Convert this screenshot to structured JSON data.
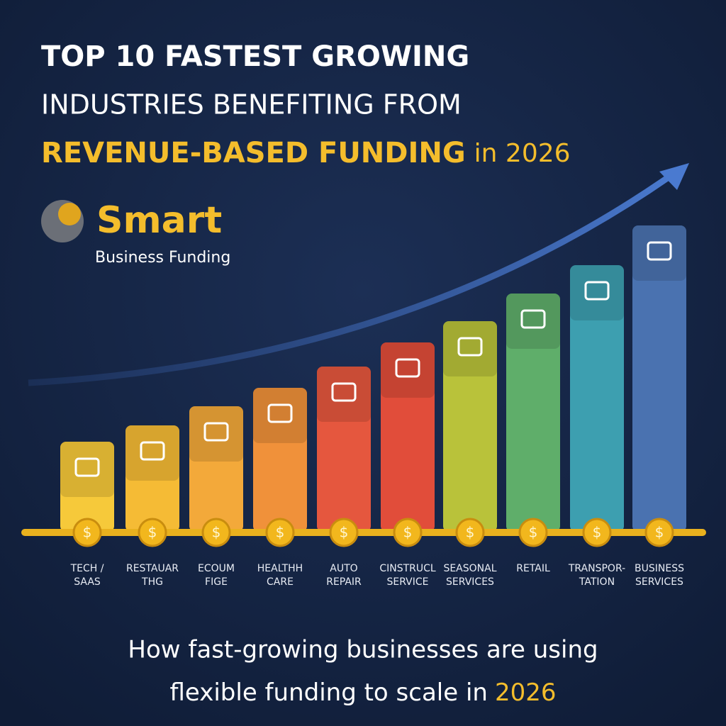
{
  "header": {
    "line1": "TOP 10 FASTEST GROWING",
    "line2": "INDUSTRIES BENEFITING FROM",
    "line3_highlight": "REVENUE-BASED FUNDING",
    "line3_rest": "in 2026"
  },
  "logo": {
    "name": "Smart",
    "tagline": "Business Funding"
  },
  "coin_symbol": "$",
  "industries": [
    {
      "lines": [
        "TECH /",
        "SAAS"
      ]
    },
    {
      "lines": [
        "RESTAUAR",
        "THG"
      ]
    },
    {
      "lines": [
        "ECOUM",
        "FIGE"
      ]
    },
    {
      "lines": [
        "HEALTHH",
        "CARE"
      ]
    },
    {
      "lines": [
        "AUTO",
        "REPAIR"
      ]
    },
    {
      "lines": [
        "CINSTRUCL",
        "SERVICE"
      ]
    },
    {
      "lines": [
        "SEASONAL",
        "SERVICES"
      ]
    },
    {
      "lines": [
        "RETAIL"
      ]
    },
    {
      "lines": [
        "TRANSPOR-",
        "TATION"
      ]
    },
    {
      "lines": [
        "BUSINESS",
        "SERVICES"
      ]
    }
  ],
  "footer": {
    "line1": "How fast-growing businesses are using",
    "line2": "flexible funding to scale in",
    "year": "2026"
  }
}
